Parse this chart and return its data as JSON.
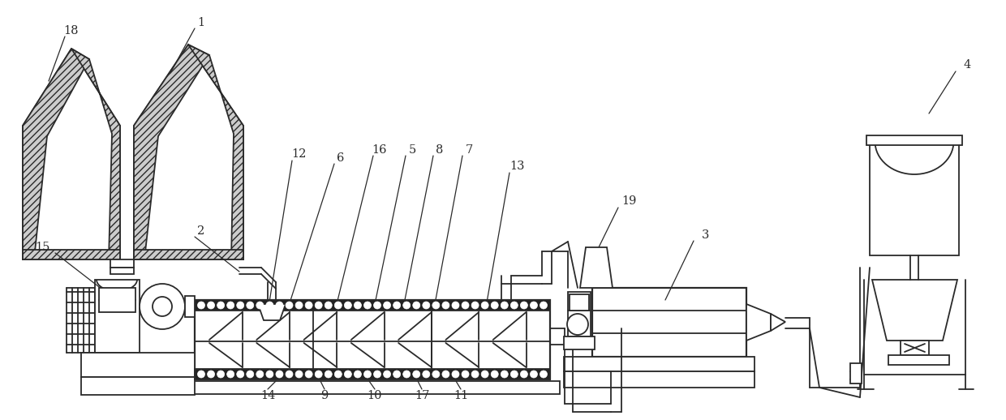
{
  "bg_color": "#ffffff",
  "line_color": "#2a2a2a",
  "figsize": [
    12.4,
    5.18
  ],
  "dpi": 100,
  "scale": {
    "xmin": 0,
    "xmax": 1240,
    "ymin": 0,
    "ymax": 518
  }
}
